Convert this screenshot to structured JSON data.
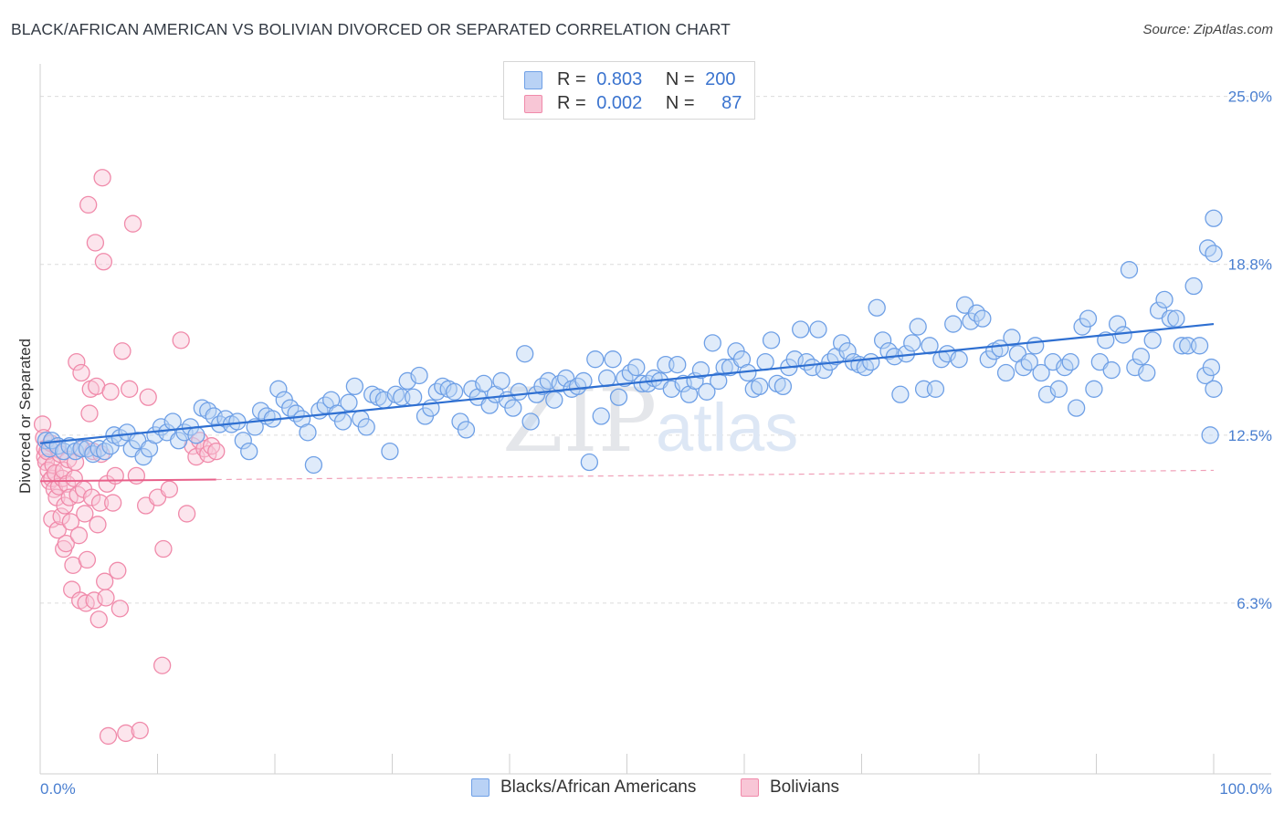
{
  "title": "BLACK/AFRICAN AMERICAN VS BOLIVIAN DIVORCED OR SEPARATED CORRELATION CHART",
  "source": "Source: ZipAtlas.com",
  "watermark": {
    "zip": "ZIP",
    "atlas": "atlas"
  },
  "legend": {
    "rows": [
      {
        "r_label": "R =",
        "r_value": "0.803",
        "n_label": "N =",
        "n_value": "200",
        "color": "#6fa0e6",
        "fill": "#b9d2f5"
      },
      {
        "r_label": "R =",
        "r_value": "0.002",
        "n_label": "N =",
        "n_value": "87",
        "color": "#f08aaa",
        "fill": "#f8c6d6"
      }
    ]
  },
  "bottom_legend": [
    {
      "label": "Blacks/African Americans",
      "color": "#6fa0e6",
      "fill": "#b9d2f5"
    },
    {
      "label": "Bolivians",
      "color": "#f08aaa",
      "fill": "#f8c6d6"
    }
  ],
  "chart_data": {
    "type": "scatter",
    "title": "BLACK/AFRICAN AMERICAN VS BOLIVIAN DIVORCED OR SEPARATED CORRELATION CHART",
    "xlabel": "",
    "ylabel": "Divorced or Separated",
    "xlim": [
      0,
      100
    ],
    "ylim": [
      0,
      26.2
    ],
    "x_tick_labels": [
      "0.0%",
      "100.0%"
    ],
    "y_ticks": [
      6.3,
      12.5,
      18.8,
      25.0
    ],
    "y_tick_labels": [
      "6.3%",
      "12.5%",
      "18.8%",
      "25.0%"
    ],
    "grid": "horizontal-dashed",
    "series": [
      {
        "name": "Blacks/African Americans",
        "color": "#6fa0e6",
        "fill": "#b9d2f5",
        "trend": {
          "x": [
            0,
            100
          ],
          "y": [
            12.2,
            16.6
          ],
          "style": "solid",
          "color": "#2e6fd1"
        },
        "points": [
          [
            0.5,
            12.3
          ],
          [
            0.8,
            12.0
          ],
          [
            1.0,
            12.3
          ],
          [
            1.5,
            12.1
          ],
          [
            2.0,
            11.9
          ],
          [
            2.5,
            12.1
          ],
          [
            3.0,
            11.9
          ],
          [
            3.5,
            12.0
          ],
          [
            4.0,
            12.0
          ],
          [
            4.5,
            11.8
          ],
          [
            5.0,
            12.0
          ],
          [
            5.5,
            11.9
          ],
          [
            6.0,
            12.1
          ],
          [
            6.3,
            12.5
          ],
          [
            6.8,
            12.4
          ],
          [
            7.4,
            12.6
          ],
          [
            7.8,
            12.0
          ],
          [
            8.3,
            12.3
          ],
          [
            8.8,
            11.7
          ],
          [
            9.3,
            12.0
          ],
          [
            9.8,
            12.5
          ],
          [
            10.3,
            12.8
          ],
          [
            10.8,
            12.6
          ],
          [
            11.3,
            13.0
          ],
          [
            11.8,
            12.3
          ],
          [
            12.3,
            12.6
          ],
          [
            12.8,
            12.8
          ],
          [
            13.3,
            12.5
          ],
          [
            13.8,
            13.5
          ],
          [
            14.3,
            13.4
          ],
          [
            14.8,
            13.2
          ],
          [
            15.3,
            12.9
          ],
          [
            15.8,
            13.1
          ],
          [
            16.3,
            12.9
          ],
          [
            16.8,
            13.0
          ],
          [
            17.3,
            12.3
          ],
          [
            17.8,
            11.9
          ],
          [
            18.3,
            12.8
          ],
          [
            18.8,
            13.4
          ],
          [
            19.3,
            13.2
          ],
          [
            19.8,
            13.1
          ],
          [
            20.3,
            14.2
          ],
          [
            20.8,
            13.8
          ],
          [
            21.3,
            13.5
          ],
          [
            21.8,
            13.3
          ],
          [
            22.3,
            13.1
          ],
          [
            22.8,
            12.6
          ],
          [
            23.3,
            11.4
          ],
          [
            23.8,
            13.4
          ],
          [
            24.3,
            13.6
          ],
          [
            24.8,
            13.8
          ],
          [
            25.3,
            13.3
          ],
          [
            25.8,
            13.0
          ],
          [
            26.3,
            13.7
          ],
          [
            26.8,
            14.3
          ],
          [
            27.3,
            13.1
          ],
          [
            27.8,
            12.8
          ],
          [
            28.3,
            14.0
          ],
          [
            28.8,
            13.9
          ],
          [
            29.3,
            13.8
          ],
          [
            29.8,
            11.9
          ],
          [
            30.3,
            14.0
          ],
          [
            30.8,
            13.9
          ],
          [
            31.3,
            14.5
          ],
          [
            31.8,
            13.9
          ],
          [
            32.3,
            14.7
          ],
          [
            32.8,
            13.2
          ],
          [
            33.3,
            13.5
          ],
          [
            33.8,
            14.1
          ],
          [
            34.3,
            14.3
          ],
          [
            34.8,
            14.2
          ],
          [
            35.3,
            14.1
          ],
          [
            35.8,
            13.0
          ],
          [
            36.3,
            12.7
          ],
          [
            36.8,
            14.2
          ],
          [
            37.3,
            13.9
          ],
          [
            37.8,
            14.4
          ],
          [
            38.3,
            13.6
          ],
          [
            38.8,
            14.0
          ],
          [
            39.3,
            14.5
          ],
          [
            39.8,
            13.8
          ],
          [
            40.3,
            13.5
          ],
          [
            40.8,
            14.1
          ],
          [
            41.3,
            15.5
          ],
          [
            41.8,
            13.0
          ],
          [
            42.3,
            14.0
          ],
          [
            42.8,
            14.3
          ],
          [
            43.3,
            14.5
          ],
          [
            43.8,
            13.8
          ],
          [
            44.3,
            14.4
          ],
          [
            44.8,
            14.6
          ],
          [
            45.3,
            14.2
          ],
          [
            45.8,
            14.3
          ],
          [
            46.3,
            14.5
          ],
          [
            46.8,
            11.5
          ],
          [
            47.3,
            15.3
          ],
          [
            47.8,
            13.2
          ],
          [
            48.3,
            14.6
          ],
          [
            48.8,
            15.3
          ],
          [
            49.3,
            13.9
          ],
          [
            49.8,
            14.6
          ],
          [
            50.3,
            14.8
          ],
          [
            50.8,
            15.0
          ],
          [
            51.3,
            14.4
          ],
          [
            51.8,
            14.4
          ],
          [
            52.3,
            14.6
          ],
          [
            52.8,
            14.5
          ],
          [
            53.3,
            15.1
          ],
          [
            53.8,
            14.2
          ],
          [
            54.3,
            15.1
          ],
          [
            54.8,
            14.4
          ],
          [
            55.3,
            14.0
          ],
          [
            55.8,
            14.5
          ],
          [
            56.3,
            14.9
          ],
          [
            56.8,
            14.1
          ],
          [
            57.3,
            15.9
          ],
          [
            57.8,
            14.5
          ],
          [
            58.3,
            15.0
          ],
          [
            58.8,
            15.0
          ],
          [
            59.3,
            15.6
          ],
          [
            59.8,
            15.3
          ],
          [
            60.3,
            14.8
          ],
          [
            60.8,
            14.2
          ],
          [
            61.3,
            14.3
          ],
          [
            61.8,
            15.2
          ],
          [
            62.3,
            16.0
          ],
          [
            62.8,
            14.4
          ],
          [
            63.3,
            14.3
          ],
          [
            63.8,
            15.0
          ],
          [
            64.3,
            15.3
          ],
          [
            64.8,
            16.4
          ],
          [
            65.3,
            15.2
          ],
          [
            65.8,
            15.0
          ],
          [
            66.3,
            16.4
          ],
          [
            66.8,
            14.9
          ],
          [
            67.3,
            15.2
          ],
          [
            67.8,
            15.4
          ],
          [
            68.3,
            15.9
          ],
          [
            68.8,
            15.6
          ],
          [
            69.3,
            15.2
          ],
          [
            69.8,
            15.1
          ],
          [
            70.3,
            15.0
          ],
          [
            70.8,
            15.2
          ],
          [
            71.3,
            17.2
          ],
          [
            71.8,
            16.0
          ],
          [
            72.3,
            15.6
          ],
          [
            72.8,
            15.4
          ],
          [
            73.3,
            14.0
          ],
          [
            73.8,
            15.5
          ],
          [
            74.3,
            15.9
          ],
          [
            74.8,
            16.5
          ],
          [
            75.3,
            14.2
          ],
          [
            75.8,
            15.8
          ],
          [
            76.3,
            14.2
          ],
          [
            76.8,
            15.3
          ],
          [
            77.3,
            15.5
          ],
          [
            77.8,
            16.6
          ],
          [
            78.3,
            15.3
          ],
          [
            78.8,
            17.3
          ],
          [
            79.3,
            16.7
          ],
          [
            79.8,
            17.0
          ],
          [
            80.3,
            16.8
          ],
          [
            80.8,
            15.3
          ],
          [
            81.3,
            15.6
          ],
          [
            81.8,
            15.7
          ],
          [
            82.3,
            14.8
          ],
          [
            82.8,
            16.1
          ],
          [
            83.3,
            15.5
          ],
          [
            83.8,
            15.0
          ],
          [
            84.3,
            15.2
          ],
          [
            84.8,
            15.8
          ],
          [
            85.3,
            14.8
          ],
          [
            85.8,
            14.0
          ],
          [
            86.3,
            15.2
          ],
          [
            86.8,
            14.2
          ],
          [
            87.3,
            15.0
          ],
          [
            87.8,
            15.2
          ],
          [
            88.3,
            13.5
          ],
          [
            88.8,
            16.5
          ],
          [
            89.3,
            16.8
          ],
          [
            89.8,
            14.2
          ],
          [
            90.3,
            15.2
          ],
          [
            90.8,
            16.0
          ],
          [
            91.3,
            14.9
          ],
          [
            91.8,
            16.6
          ],
          [
            92.3,
            16.2
          ],
          [
            92.8,
            18.6
          ],
          [
            93.3,
            15.0
          ],
          [
            93.8,
            15.4
          ],
          [
            94.3,
            14.8
          ],
          [
            94.8,
            16.0
          ],
          [
            95.3,
            17.1
          ],
          [
            95.8,
            17.5
          ],
          [
            96.3,
            16.8
          ],
          [
            96.8,
            16.8
          ],
          [
            97.3,
            15.8
          ],
          [
            97.8,
            15.8
          ],
          [
            98.3,
            18.0
          ],
          [
            98.8,
            15.8
          ],
          [
            99.3,
            14.7
          ],
          [
            99.5,
            19.4
          ],
          [
            99.7,
            12.5
          ],
          [
            99.8,
            15.0
          ],
          [
            100.0,
            14.2
          ],
          [
            100.0,
            19.2
          ],
          [
            100.0,
            20.5
          ]
        ]
      },
      {
        "name": "Bolivians",
        "color": "#f08aaa",
        "fill": "#f8c6d6",
        "trend": {
          "x": [
            0,
            100
          ],
          "y": [
            10.8,
            11.2
          ],
          "solid_until_x": 15,
          "style": "solid-then-dashed",
          "color": "#e8608a"
        },
        "points": [
          [
            0.2,
            12.9
          ],
          [
            0.3,
            12.4
          ],
          [
            0.4,
            12.0
          ],
          [
            0.4,
            11.7
          ],
          [
            0.5,
            11.5
          ],
          [
            0.6,
            11.9
          ],
          [
            0.7,
            11.2
          ],
          [
            0.8,
            10.8
          ],
          [
            0.9,
            12.2
          ],
          [
            1.0,
            10.9
          ],
          [
            1.0,
            9.4
          ],
          [
            1.1,
            11.4
          ],
          [
            1.2,
            10.5
          ],
          [
            1.3,
            11.1
          ],
          [
            1.4,
            10.2
          ],
          [
            1.5,
            12.0
          ],
          [
            1.5,
            9.0
          ],
          [
            1.6,
            10.6
          ],
          [
            1.7,
            11.8
          ],
          [
            1.8,
            9.5
          ],
          [
            1.9,
            10.9
          ],
          [
            2.0,
            8.3
          ],
          [
            2.0,
            11.2
          ],
          [
            2.1,
            9.9
          ],
          [
            2.2,
            8.5
          ],
          [
            2.3,
            10.7
          ],
          [
            2.4,
            11.6
          ],
          [
            2.5,
            10.2
          ],
          [
            2.6,
            9.3
          ],
          [
            2.7,
            6.8
          ],
          [
            2.8,
            7.7
          ],
          [
            2.9,
            10.9
          ],
          [
            3.0,
            11.5
          ],
          [
            3.1,
            15.2
          ],
          [
            3.2,
            10.3
          ],
          [
            3.3,
            8.8
          ],
          [
            3.4,
            6.4
          ],
          [
            3.5,
            14.8
          ],
          [
            3.6,
            12.0
          ],
          [
            3.7,
            10.5
          ],
          [
            3.8,
            9.6
          ],
          [
            3.9,
            6.3
          ],
          [
            4.0,
            7.9
          ],
          [
            4.1,
            21.0
          ],
          [
            4.2,
            13.3
          ],
          [
            4.3,
            14.2
          ],
          [
            4.4,
            10.2
          ],
          [
            4.5,
            11.9
          ],
          [
            4.6,
            6.4
          ],
          [
            4.7,
            19.6
          ],
          [
            4.8,
            14.3
          ],
          [
            4.9,
            9.2
          ],
          [
            5.0,
            5.7
          ],
          [
            5.1,
            10.0
          ],
          [
            5.2,
            11.8
          ],
          [
            5.3,
            22.0
          ],
          [
            5.4,
            18.9
          ],
          [
            5.5,
            7.1
          ],
          [
            5.6,
            6.5
          ],
          [
            5.7,
            10.7
          ],
          [
            5.8,
            1.4
          ],
          [
            6.0,
            14.1
          ],
          [
            6.2,
            10.0
          ],
          [
            6.4,
            11.0
          ],
          [
            6.6,
            7.5
          ],
          [
            6.8,
            6.1
          ],
          [
            7.0,
            15.6
          ],
          [
            7.3,
            1.5
          ],
          [
            7.6,
            14.2
          ],
          [
            7.9,
            20.3
          ],
          [
            8.2,
            11.0
          ],
          [
            8.5,
            1.6
          ],
          [
            9.0,
            9.9
          ],
          [
            9.2,
            13.9
          ],
          [
            10.0,
            10.2
          ],
          [
            10.4,
            4.0
          ],
          [
            10.5,
            8.3
          ],
          [
            11.0,
            10.5
          ],
          [
            12.0,
            16.0
          ],
          [
            12.5,
            9.6
          ],
          [
            13.0,
            12.1
          ],
          [
            13.3,
            11.7
          ],
          [
            13.6,
            12.3
          ],
          [
            14.0,
            12.0
          ],
          [
            14.3,
            11.8
          ],
          [
            14.6,
            12.1
          ],
          [
            15.0,
            11.9
          ]
        ]
      }
    ]
  }
}
